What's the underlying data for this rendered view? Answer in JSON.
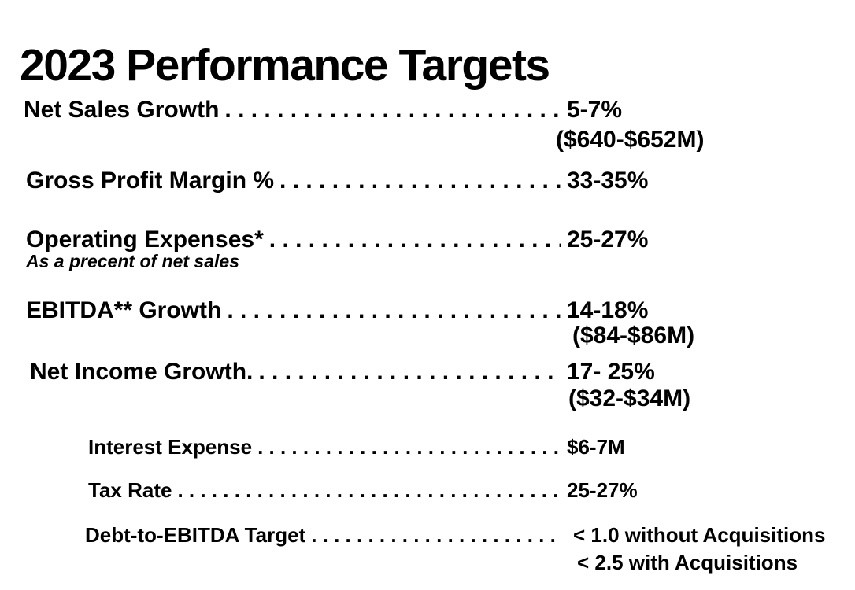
{
  "page": {
    "title": "2023 Performance Targets",
    "background_color": "#ffffff",
    "text_color": "#000000"
  },
  "targets": [
    {
      "label": "Net Sales Growth",
      "value": "5-7%",
      "value2": "($640-$652M)",
      "indent": "main"
    },
    {
      "label": "Gross Profit Margin %",
      "value": "33-35%",
      "indent": "main"
    },
    {
      "label": "Operating Expenses*",
      "value": "25-27%",
      "note": "As a precent of net sales",
      "indent": "main"
    },
    {
      "label": "EBITDA** Growth",
      "value": "14-18%",
      "value2": "($84-$86M)",
      "indent": "main"
    },
    {
      "label": "Net Income Growth.",
      "value": "17- 25%",
      "value2": "($32-$34M)",
      "indent": "main"
    },
    {
      "label": "Interest Expense",
      "value": "$6-7M",
      "indent": "sub"
    },
    {
      "label": "Tax Rate",
      "value": "25-27%",
      "indent": "sub"
    },
    {
      "label": "Debt-to-EBITDA Target",
      "value": "< 1.0 without Acquisitions",
      "value2": "< 2.5 with Acquisitions",
      "indent": "sub"
    }
  ]
}
